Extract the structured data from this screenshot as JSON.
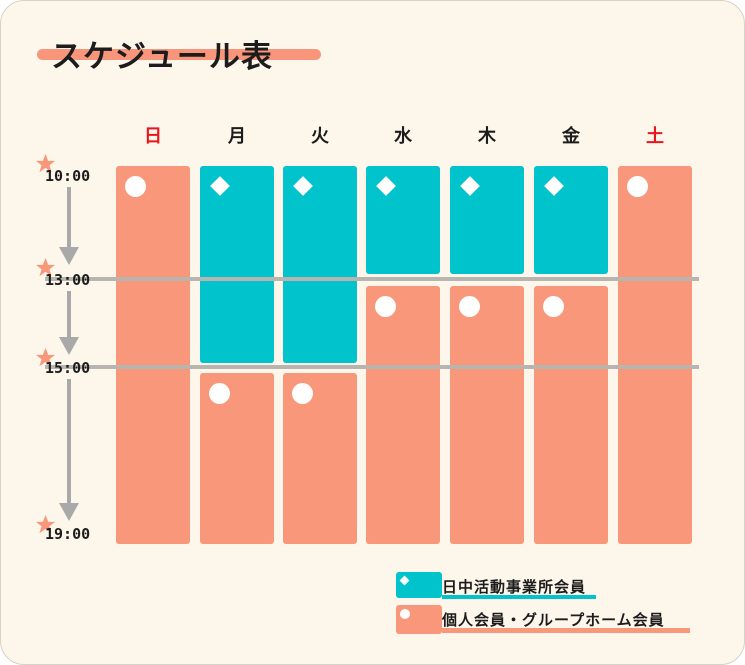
{
  "title": "スケジュール表",
  "days": [
    {
      "label": "日",
      "holiday": true
    },
    {
      "label": "月",
      "holiday": false
    },
    {
      "label": "火",
      "holiday": false
    },
    {
      "label": "水",
      "holiday": false
    },
    {
      "label": "木",
      "holiday": false
    },
    {
      "label": "金",
      "holiday": false
    },
    {
      "label": "土",
      "holiday": true
    }
  ],
  "times": [
    "10:00",
    "13:00",
    "15:00",
    "19:00"
  ],
  "legend": {
    "day_activity": "日中活動事業所会員",
    "individual": "個人会員・グループホーム会員"
  },
  "colors": {
    "teal": "#00c3cc",
    "orange": "#f9977a",
    "holiday_red": "#e8161c",
    "background": "#fdf6ea"
  },
  "icons": {
    "day_activity_marker": "diamond",
    "individual_marker": "circle",
    "time_marker": "star"
  }
}
